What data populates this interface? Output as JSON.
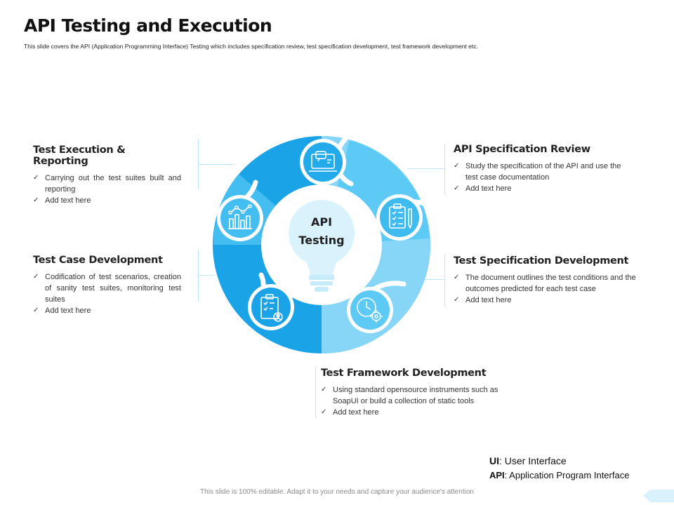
{
  "page": {
    "title": "API Testing and Execution",
    "subtitle": "This slide covers the API (Application Programming Interface) Testing which includes specification review, test specification development, test framework development etc."
  },
  "center": {
    "line1": "API",
    "line2": "Testing"
  },
  "steps": {
    "execution": {
      "heading": "Test Execution & Reporting",
      "bullets": [
        "Carrying out the test suites built and reporting",
        "Add text here"
      ],
      "icon": "chart-icon"
    },
    "case_dev": {
      "heading": "Test Case Development",
      "bullets": [
        "Codification of test scenarios, creation of sanity test suites, monitoring test suites",
        "Add text here"
      ],
      "icon": "clipboard-user-icon"
    },
    "spec_review": {
      "heading": "API Specification Review",
      "bullets": [
        "Study the specification of the API and use the test case documentation",
        "Add text here"
      ],
      "icon": "laptop-chat-icon"
    },
    "spec_dev": {
      "heading": "Test Specification Development",
      "bullets": [
        "The document outlines the test conditions and the outcomes predicted for each test case",
        "Add text here"
      ],
      "icon": "checklist-pencil-icon"
    },
    "framework": {
      "heading": "Test Framework Development",
      "bullets": [
        "Using standard opensource instruments such as SoapUI or build a collection of static tools",
        "Add text here"
      ],
      "icon": "clock-gear-icon"
    }
  },
  "abbreviations": [
    {
      "abbr": "UI",
      "text": ": User Interface"
    },
    {
      "abbr": "API",
      "text": ": Application Program Interface"
    }
  ],
  "footer": "This slide is 100% editable. Adapt it to your needs and capture your audience's attention",
  "colors": {
    "dark": "#1aa3e6",
    "mid": "#44bdf0",
    "light": "#87d6f7",
    "pale": "#d9f2fc",
    "line": "#bfe6f6"
  }
}
